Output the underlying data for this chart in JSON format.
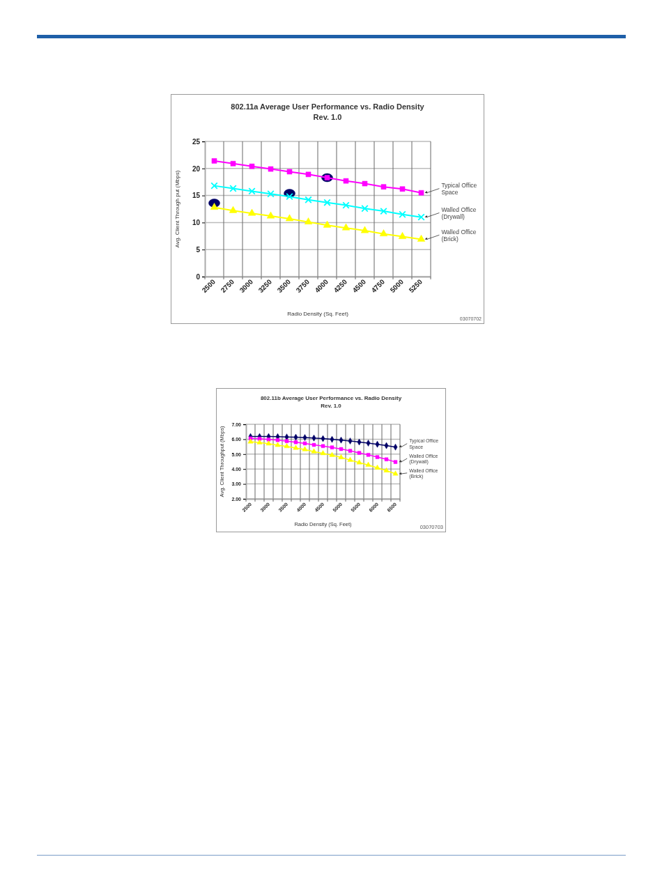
{
  "chart_data": [
    {
      "type": "line",
      "title": "802.11a Average User Performance vs. Radio Density",
      "subtitle": "Rev. 1.0",
      "xlabel": "Radio Density (Sq. Feet)",
      "ylabel": "Avg. Client Through put (Mbps)",
      "categories": [
        "2500",
        "2750",
        "3000",
        "3250",
        "3500",
        "3750",
        "4000",
        "4250",
        "4500",
        "4750",
        "5000",
        "5250"
      ],
      "ylim": [
        0,
        25
      ],
      "yticks": [
        0,
        5,
        10,
        15,
        20,
        25
      ],
      "grid": true,
      "series": [
        {
          "name": "Typical Office Space",
          "color": "#ff00ff",
          "marker": "square",
          "values": [
            21.4,
            20.9,
            20.4,
            19.9,
            19.4,
            18.9,
            18.3,
            17.7,
            17.2,
            16.6,
            16.2,
            15.5
          ]
        },
        {
          "name": "Walled Office (Drywall)",
          "color": "#00ffff",
          "marker": "cross",
          "values": [
            16.8,
            16.3,
            15.8,
            15.3,
            14.8,
            14.2,
            13.7,
            13.2,
            12.6,
            12.1,
            11.5,
            11.0
          ]
        },
        {
          "name": "Walled Office (Brick)",
          "color": "#ffff00",
          "marker": "triangle",
          "values": [
            12.8,
            12.2,
            11.7,
            11.2,
            10.7,
            10.1,
            9.5,
            9.0,
            8.5,
            7.9,
            7.4,
            6.9
          ]
        },
        {
          "type": "scatter",
          "color": "#000066",
          "marker": "circle",
          "values": [
            13.6,
            null,
            null,
            null,
            15.4,
            null,
            18.3,
            null,
            null,
            null,
            null,
            null
          ]
        }
      ],
      "annotations": [
        "03070702"
      ]
    },
    {
      "type": "line",
      "title": "802.11b Average User Performance vs. Radio Density",
      "subtitle": "Rev. 1.0",
      "xlabel": "Radio Density (Sq. Feet)",
      "ylabel": "Avg. Client Throughput (Mbps)",
      "categories": [
        "2500",
        null,
        "3000",
        null,
        "3500",
        null,
        "4000",
        null,
        "4500",
        null,
        "5000",
        null,
        "5500",
        null,
        "6000",
        null,
        "6500"
      ],
      "ylim": [
        2,
        7
      ],
      "yticks": [
        {
          "value": 2,
          "label": "2.00"
        },
        {
          "value": 3,
          "label": "3.00"
        },
        {
          "value": 4,
          "label": "4.00"
        },
        {
          "value": 5,
          "label": "5.00"
        },
        {
          "value": 6,
          "label": "6.00"
        },
        {
          "value": 7,
          "label": "7.00"
        }
      ],
      "grid": true,
      "series": [
        {
          "name": "Typical Office Space",
          "color": "#000066",
          "marker": "diamond",
          "values": [
            6.18,
            6.18,
            6.18,
            6.17,
            6.15,
            6.13,
            6.11,
            6.08,
            6.04,
            5.99,
            5.94,
            5.88,
            5.81,
            5.74,
            5.66,
            5.57,
            5.47
          ]
        },
        {
          "name": "Walled Office (Drywall)",
          "color": "#ff00ff",
          "marker": "square",
          "values": [
            6.05,
            6.03,
            5.98,
            5.94,
            5.87,
            5.8,
            5.72,
            5.62,
            5.54,
            5.45,
            5.34,
            5.22,
            5.08,
            4.95,
            4.8,
            4.65,
            4.47
          ]
        },
        {
          "name": "Walled Office (Brick)",
          "color": "#ffff00",
          "marker": "triangle",
          "values": [
            5.83,
            5.77,
            5.7,
            5.6,
            5.52,
            5.41,
            5.31,
            5.17,
            5.05,
            4.93,
            4.78,
            4.6,
            4.43,
            4.27,
            4.08,
            3.89,
            3.68
          ]
        }
      ],
      "annotations": [
        "03070703"
      ]
    }
  ]
}
